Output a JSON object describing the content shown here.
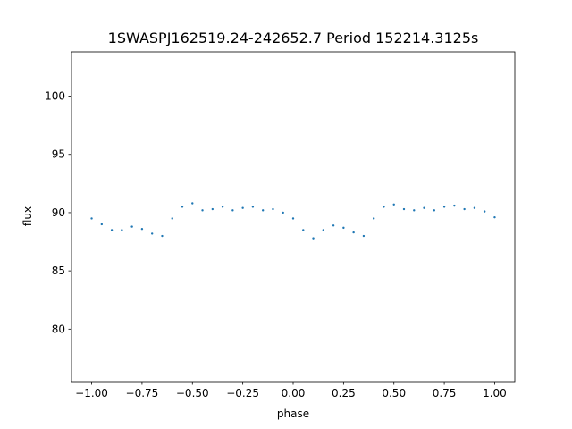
{
  "chart_data": {
    "type": "scatter",
    "title": "1SWASPJ162519.24-242652.7 Period 152214.3125s",
    "xlabel": "phase",
    "ylabel": "flux",
    "xlim": [
      -1.1,
      1.1
    ],
    "ylim": [
      75.5,
      103.8
    ],
    "xticks": [
      -1.0,
      -0.75,
      -0.5,
      -0.25,
      0.0,
      0.25,
      0.5,
      0.75,
      1.0
    ],
    "xtick_labels": [
      "−1.00",
      "−0.75",
      "−0.50",
      "−0.25",
      "0.00",
      "0.25",
      "0.50",
      "0.75",
      "1.00"
    ],
    "yticks": [
      80,
      85,
      90,
      95,
      100
    ],
    "ytick_labels": [
      "80",
      "85",
      "90",
      "95",
      "100"
    ],
    "grid": false,
    "marker_color": "#1f77b4",
    "series": [
      {
        "x": [
          -1.0,
          -0.95,
          -0.9,
          -0.85,
          -0.8,
          -0.75,
          -0.7,
          -0.65,
          -0.6,
          -0.55,
          -0.5,
          -0.45,
          -0.4,
          -0.35,
          -0.3,
          -0.25,
          -0.2,
          -0.15,
          -0.1,
          -0.05,
          0.0,
          0.05,
          0.1,
          0.15,
          0.2,
          0.25,
          0.3,
          0.35,
          0.4,
          0.45,
          0.5,
          0.55,
          0.6,
          0.65,
          0.7,
          0.75,
          0.8,
          0.85,
          0.9,
          0.95,
          1.0
        ],
        "y": [
          89.5,
          89.0,
          88.5,
          88.5,
          88.8,
          88.6,
          88.2,
          88.0,
          89.5,
          90.5,
          90.8,
          90.2,
          90.3,
          90.5,
          90.2,
          90.4,
          90.5,
          90.2,
          90.3,
          90.0,
          89.5,
          88.5,
          87.8,
          88.5,
          88.9,
          88.7,
          88.3,
          88.0,
          89.5,
          90.5,
          90.7,
          90.3,
          90.2,
          90.4,
          90.2,
          90.5,
          90.6,
          90.3,
          90.4,
          90.1,
          89.6
        ]
      }
    ]
  }
}
